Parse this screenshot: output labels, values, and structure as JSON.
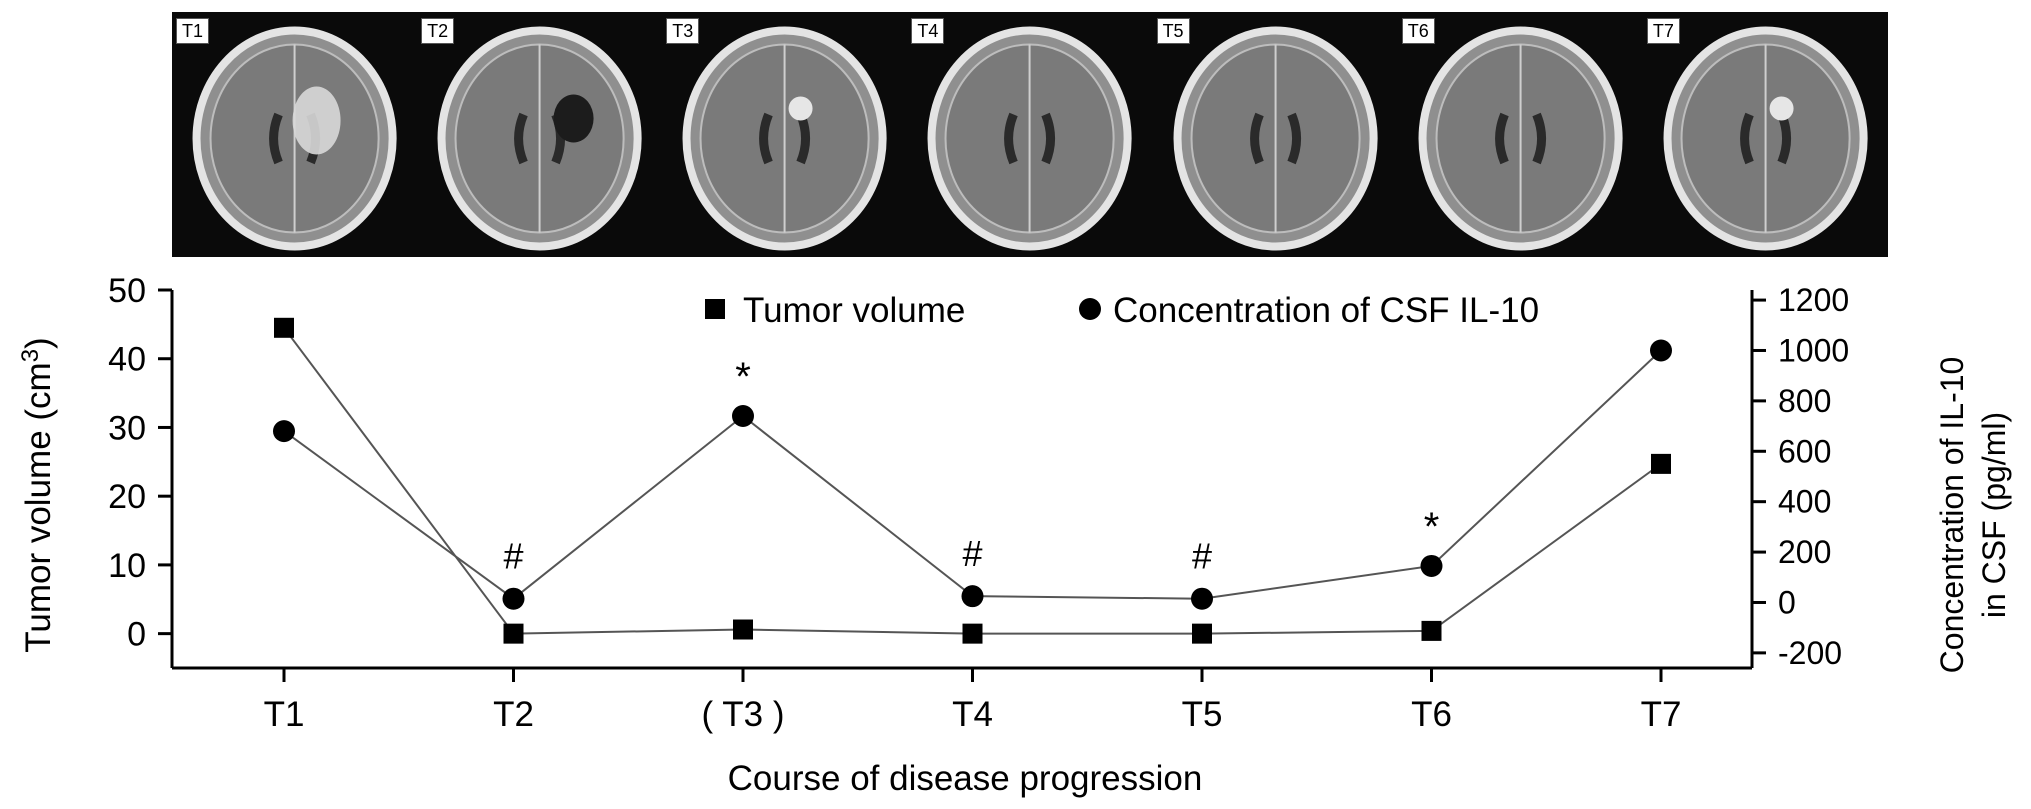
{
  "panels": [
    {
      "label": "T1",
      "tumor": "bright"
    },
    {
      "label": "T2",
      "tumor": "dark"
    },
    {
      "label": "T3",
      "tumor": "bright-small"
    },
    {
      "label": "T4",
      "tumor": "none"
    },
    {
      "label": "T5",
      "tumor": "none"
    },
    {
      "label": "T6",
      "tumor": "none"
    },
    {
      "label": "T7",
      "tumor": "bright-small"
    }
  ],
  "chart_data": {
    "type": "line",
    "title": "",
    "categories": [
      "T1",
      "T2",
      "( T3 )",
      "T4",
      "T5",
      "T6",
      "T7"
    ],
    "xlabel": "Course of disease progression",
    "y_left": {
      "label": "Tumor volume (cm",
      "label_sup": "3",
      "label_end": ")",
      "range": [
        -5,
        50
      ],
      "ticks": [
        0,
        10,
        20,
        30,
        40,
        50
      ]
    },
    "y_right": {
      "label_line1": "Concentration of IL-10",
      "label_line2": "in CSF (pg/ml)",
      "range": [
        -260,
        1240
      ],
      "ticks": [
        -200,
        0,
        200,
        400,
        600,
        800,
        1000,
        1200
      ]
    },
    "legend": {
      "placement": "top",
      "entries": [
        "Tumor volume",
        "Concentration of CSF IL-10"
      ]
    },
    "series": [
      {
        "name": "Tumor volume",
        "axis": "left",
        "marker": "square",
        "values": [
          44.5,
          0,
          0.6,
          0,
          0,
          0.4,
          24.7
        ]
      },
      {
        "name": "Concentration of CSF IL-10",
        "axis": "right",
        "marker": "circle",
        "values": [
          680,
          15,
          740,
          25,
          15,
          145,
          1000
        ]
      }
    ],
    "annotations": [
      {
        "category_index": 1,
        "text": "#"
      },
      {
        "category_index": 2,
        "text": "*"
      },
      {
        "category_index": 3,
        "text": "#"
      },
      {
        "category_index": 4,
        "text": "#"
      },
      {
        "category_index": 5,
        "text": "*"
      }
    ],
    "colors": {
      "line": "#555555",
      "marker": "#000000",
      "axis": "#000000"
    }
  }
}
